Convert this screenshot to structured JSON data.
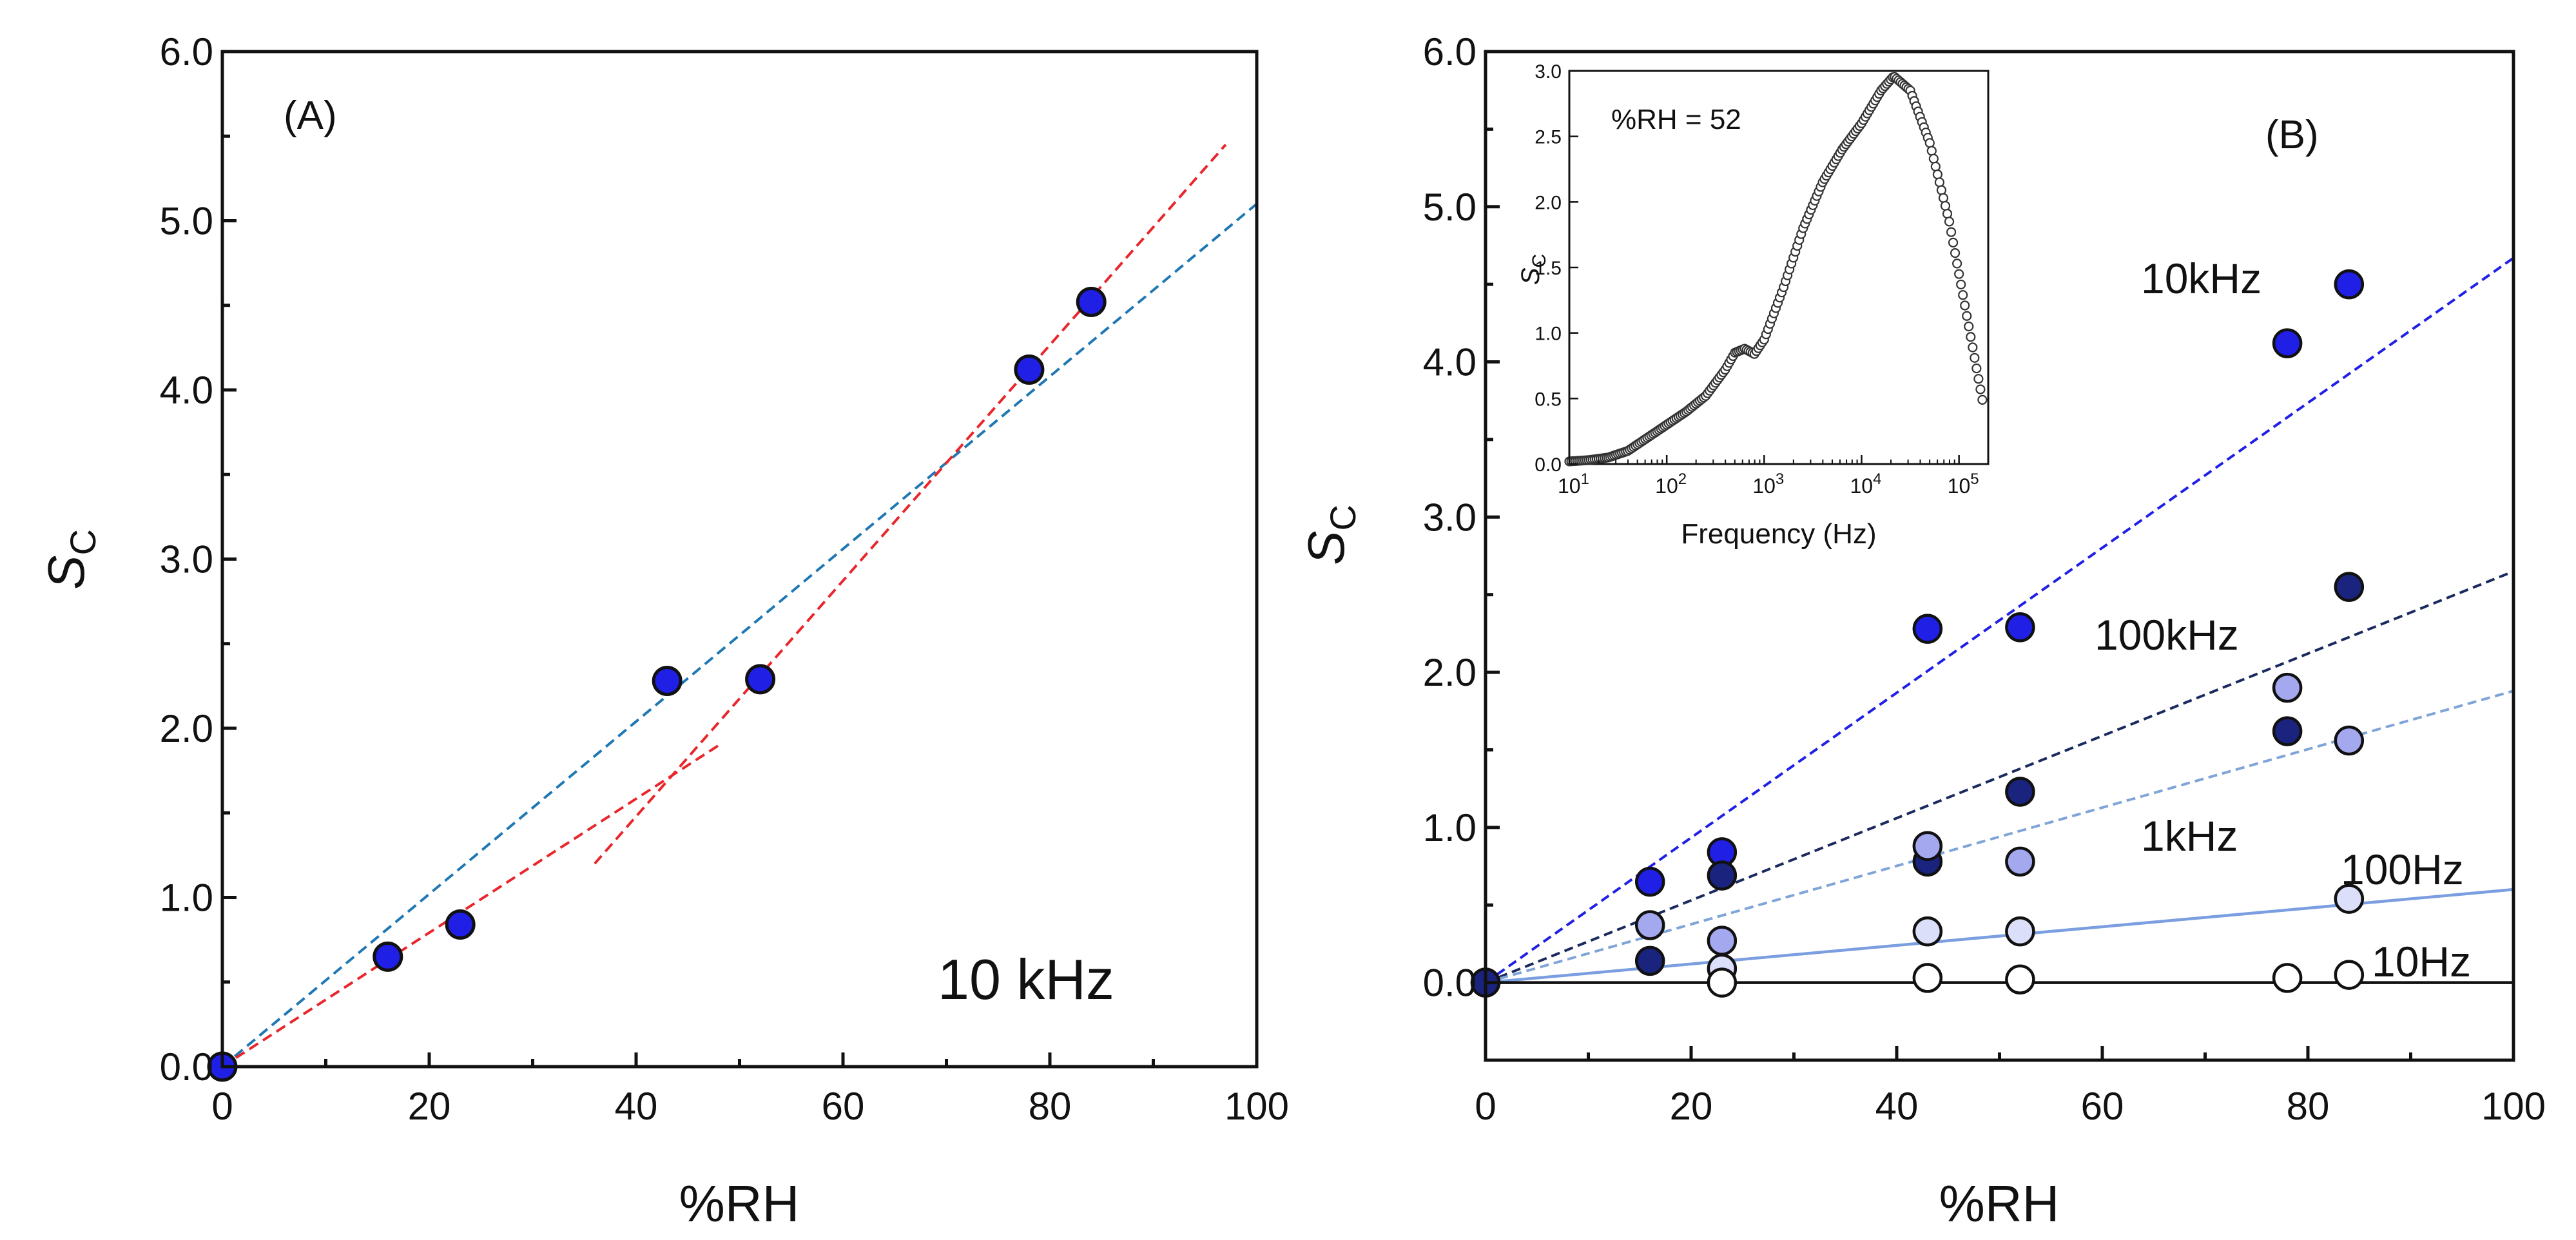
{
  "chart_data": [
    {
      "id": "A",
      "type": "scatter",
      "panel_label": "(A)",
      "annotation": "10 kHz",
      "xlabel": "%RH",
      "ylabel_main": "S",
      "ylabel_sub": "C",
      "xlim": [
        0,
        100
      ],
      "ylim": [
        0,
        6
      ],
      "x_ticks": [
        0,
        20,
        40,
        60,
        80,
        100
      ],
      "x_tick_labels": [
        "0",
        "20",
        "40",
        "60",
        "80",
        "100"
      ],
      "y_ticks": [
        0,
        1,
        2,
        3,
        4,
        5,
        6
      ],
      "y_tick_labels": [
        "0.0",
        "1.0",
        "2.0",
        "3.0",
        "4.0",
        "5.0",
        "6.0"
      ],
      "points": [
        {
          "x": 0,
          "y": 0.0
        },
        {
          "x": 16,
          "y": 0.65
        },
        {
          "x": 23,
          "y": 0.84
        },
        {
          "x": 43,
          "y": 2.28
        },
        {
          "x": 52,
          "y": 2.29
        },
        {
          "x": 78,
          "y": 4.12
        },
        {
          "x": 84,
          "y": 4.52
        }
      ],
      "point_color": "#1f1fe6",
      "fit_lines": [
        {
          "name": "overall linear fit",
          "color": "#1f77b4",
          "x": [
            0,
            100
          ],
          "y": [
            0,
            5.1
          ]
        },
        {
          "name": "low-RH fit",
          "color": "#e8262b",
          "x": [
            0,
            48
          ],
          "y": [
            0,
            1.9
          ]
        },
        {
          "name": "high-RH fit",
          "color": "#e8262b",
          "x": [
            36,
            97
          ],
          "y": [
            1.2,
            5.45
          ]
        }
      ]
    },
    {
      "id": "B",
      "type": "scatter",
      "panel_label": "(B)",
      "xlabel": "%RH",
      "ylabel_main": "S",
      "ylabel_sub": "C",
      "xlim": [
        0,
        100
      ],
      "ylim": [
        -0.5,
        6
      ],
      "x_ticks": [
        0,
        20,
        40,
        60,
        80,
        100
      ],
      "x_tick_labels": [
        "0",
        "20",
        "40",
        "60",
        "80",
        "100"
      ],
      "y_ticks": [
        0,
        1,
        2,
        3,
        4,
        5,
        6
      ],
      "y_tick_labels": [
        "0.0",
        "1.0",
        "2.0",
        "3.0",
        "4.0",
        "5.0",
        "6.0"
      ],
      "series": [
        {
          "name": "10kHz",
          "color": "#1f1fe6",
          "points": [
            {
              "x": 0,
              "y": 0
            },
            {
              "x": 16,
              "y": 0.65
            },
            {
              "x": 23,
              "y": 0.84
            },
            {
              "x": 43,
              "y": 2.28
            },
            {
              "x": 52,
              "y": 2.29
            },
            {
              "x": 78,
              "y": 4.12
            },
            {
              "x": 84,
              "y": 4.5
            }
          ],
          "fit": {
            "x": [
              0,
              100
            ],
            "y": [
              0,
              4.67
            ]
          },
          "fit_color": "#1f1fe6",
          "fit_dash": true
        },
        {
          "name": "100kHz",
          "color": "#1a237e",
          "points": [
            {
              "x": 16,
              "y": 0.14
            },
            {
              "x": 23,
              "y": 0.69
            },
            {
              "x": 43,
              "y": 0.78
            },
            {
              "x": 52,
              "y": 1.23
            },
            {
              "x": 78,
              "y": 1.62
            },
            {
              "x": 84,
              "y": 2.55
            }
          ],
          "fit": {
            "x": [
              0,
              100
            ],
            "y": [
              0,
              2.65
            ]
          },
          "fit_color": "#1a2a5e",
          "fit_dash": true
        },
        {
          "name": "1kHz",
          "color": "#a3a8ef",
          "points": [
            {
              "x": 16,
              "y": 0.37
            },
            {
              "x": 23,
              "y": 0.27
            },
            {
              "x": 43,
              "y": 0.88
            },
            {
              "x": 52,
              "y": 0.78
            },
            {
              "x": 78,
              "y": 1.9
            },
            {
              "x": 84,
              "y": 1.56
            }
          ],
          "fit": {
            "x": [
              0,
              100
            ],
            "y": [
              0,
              1.88
            ]
          },
          "fit_color": "#7fa4d8",
          "fit_dash": true
        },
        {
          "name": "100Hz",
          "color": "#dcdff9",
          "points": [
            {
              "x": 23,
              "y": 0.09
            },
            {
              "x": 43,
              "y": 0.33
            },
            {
              "x": 52,
              "y": 0.33
            },
            {
              "x": 84,
              "y": 0.54
            }
          ],
          "fit": {
            "x": [
              0,
              100
            ],
            "y": [
              0,
              0.6
            ]
          },
          "fit_color": "#7b9ee0",
          "fit_dash": false
        },
        {
          "name": "10Hz",
          "color": "#ffffff",
          "points": [
            {
              "x": 23,
              "y": 0.0
            },
            {
              "x": 43,
              "y": 0.03
            },
            {
              "x": 52,
              "y": 0.02
            },
            {
              "x": 78,
              "y": 0.03
            },
            {
              "x": 84,
              "y": 0.05
            }
          ],
          "fit": {
            "x": [
              0,
              100
            ],
            "y": [
              0,
              0
            ]
          },
          "fit_color": "#111111",
          "fit_dash": false
        }
      ],
      "origin_point": {
        "x": 0,
        "y": 0,
        "color": "#1a237e"
      },
      "labels": [
        "10kHz",
        "100kHz",
        "1kHz",
        "100Hz",
        "10Hz"
      ]
    },
    {
      "id": "inset",
      "type": "line",
      "annotation": "%RH = 52",
      "xlabel": "Frequency (Hz)",
      "ylabel_main": "S",
      "ylabel_sub": "C",
      "xscale": "log",
      "xlim": [
        1,
        5.3
      ],
      "ylim": [
        0,
        3
      ],
      "x_ticks": [
        1,
        2,
        3,
        4,
        5
      ],
      "x_tick_labels": [
        {
          "base": "10",
          "exp": "1"
        },
        {
          "base": "10",
          "exp": "2"
        },
        {
          "base": "10",
          "exp": "3"
        },
        {
          "base": "10",
          "exp": "4"
        },
        {
          "base": "10",
          "exp": "5"
        }
      ],
      "y_ticks": [
        0,
        0.5,
        1,
        1.5,
        2,
        2.5,
        3
      ],
      "y_tick_labels": [
        "0.0",
        "0.5",
        "1.0",
        "1.5",
        "2.0",
        "2.5",
        "3.0"
      ],
      "curve_log10_x": [
        1.0,
        1.2,
        1.4,
        1.6,
        1.8,
        2.0,
        2.2,
        2.4,
        2.6,
        2.7,
        2.8,
        2.9,
        3.0,
        3.2,
        3.4,
        3.6,
        3.8,
        4.0,
        4.2,
        4.33,
        4.5,
        4.7,
        4.9,
        5.1,
        5.25
      ],
      "curve_y": [
        0.02,
        0.03,
        0.05,
        0.1,
        0.2,
        0.3,
        0.4,
        0.52,
        0.72,
        0.85,
        0.88,
        0.84,
        0.95,
        1.35,
        1.8,
        2.15,
        2.4,
        2.6,
        2.85,
        2.96,
        2.85,
        2.45,
        1.85,
        1.05,
        0.45
      ]
    }
  ]
}
